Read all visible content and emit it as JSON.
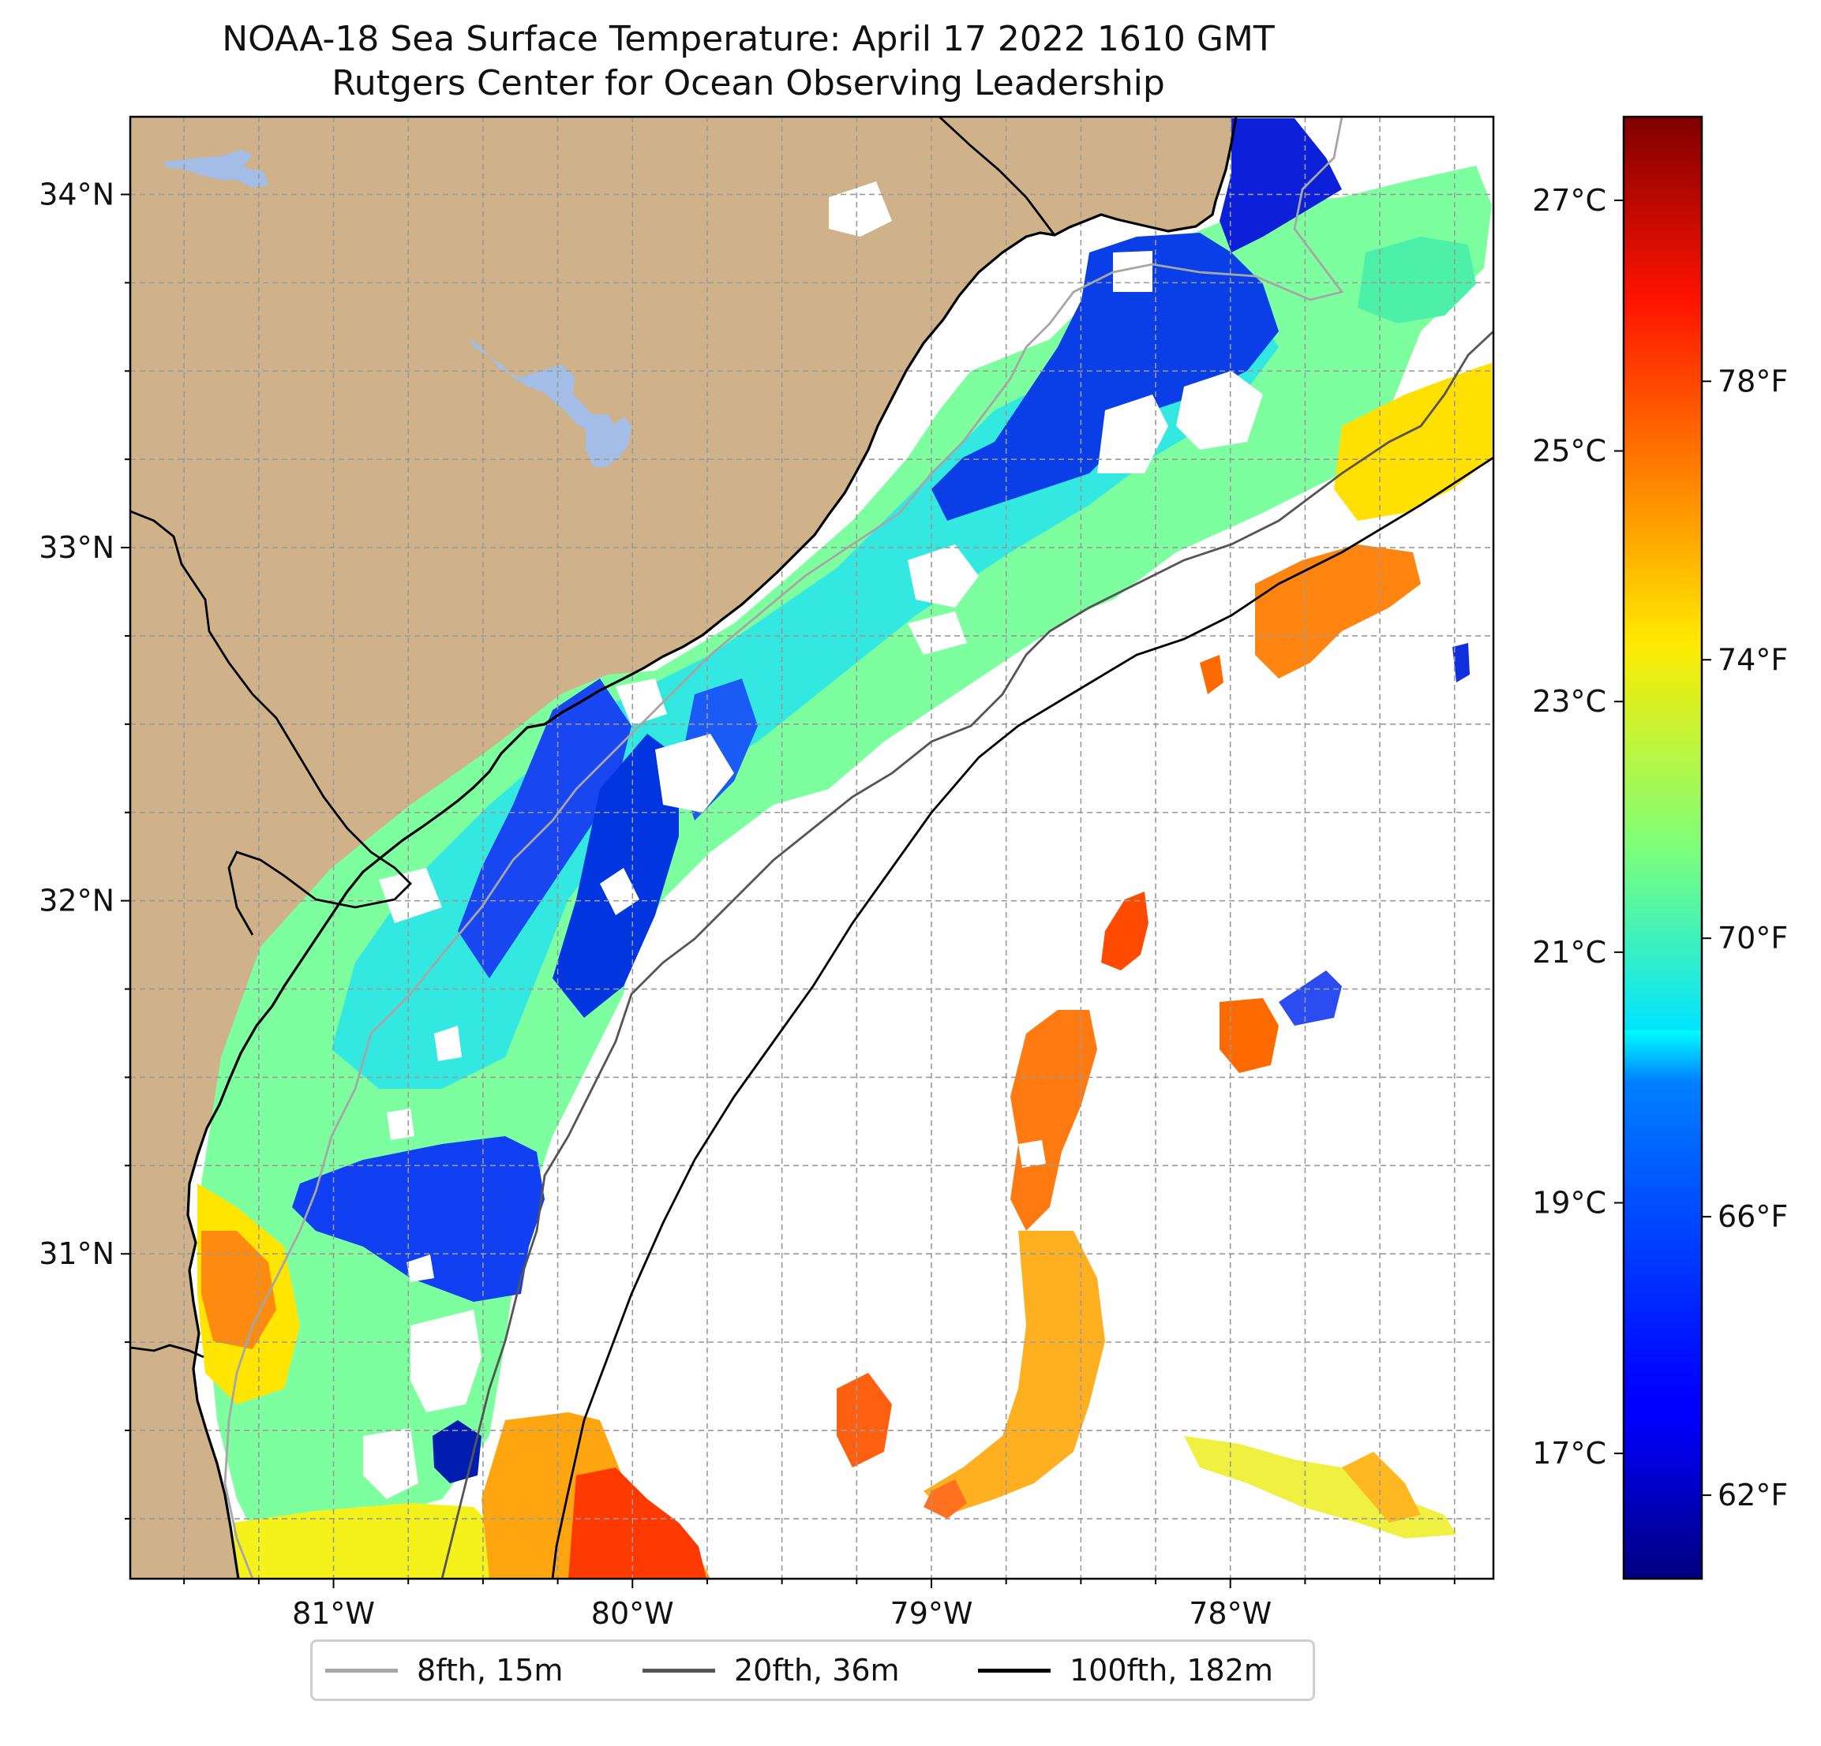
{
  "title": {
    "line1": "NOAA-18 Sea Surface Temperature: April 17 2022 1610 GMT",
    "line2": "Rutgers Center for Ocean Observing Leadership"
  },
  "map": {
    "lon_range": [
      -81.68,
      -77.12
    ],
    "lat_range": [
      30.08,
      34.22
    ],
    "lat_ticks": [
      {
        "value": 31,
        "label": "31°N"
      },
      {
        "value": 32,
        "label": "32°N"
      },
      {
        "value": 33,
        "label": "33°N"
      },
      {
        "value": 34,
        "label": "34°N"
      }
    ],
    "lon_ticks": [
      {
        "value": -81,
        "label": "81°W"
      },
      {
        "value": -80,
        "label": "80°W"
      },
      {
        "value": -79,
        "label": "79°W"
      },
      {
        "value": -78,
        "label": "78°W"
      }
    ],
    "grid": "dashed, every 0.25°",
    "colors": {
      "land": "#cfb28a",
      "water_bodies": "#a3bde6",
      "no_data": "#ffffff",
      "coastline": "#000000"
    }
  },
  "colorbar": {
    "colormap": "jet",
    "range_f": [
      60.8,
      81.8
    ],
    "celsius_ticks": [
      {
        "value": 17,
        "label": "17°C"
      },
      {
        "value": 19,
        "label": "19°C"
      },
      {
        "value": 21,
        "label": "21°C"
      },
      {
        "value": 23,
        "label": "23°C"
      },
      {
        "value": 25,
        "label": "25°C"
      },
      {
        "value": 27,
        "label": "27°C"
      }
    ],
    "fahrenheit_ticks": [
      {
        "value": 62,
        "label": "62°F"
      },
      {
        "value": 66,
        "label": "66°F"
      },
      {
        "value": 70,
        "label": "70°F"
      },
      {
        "value": 74,
        "label": "74°F"
      },
      {
        "value": 78,
        "label": "78°F"
      }
    ]
  },
  "legend": {
    "position": "bottom-center",
    "items": [
      {
        "label": "8fth, 15m",
        "color": "#a6a6a6"
      },
      {
        "label": "20fth, 36m",
        "color": "#555555"
      },
      {
        "label": "100fth, 182m",
        "color": "#000000"
      }
    ]
  }
}
